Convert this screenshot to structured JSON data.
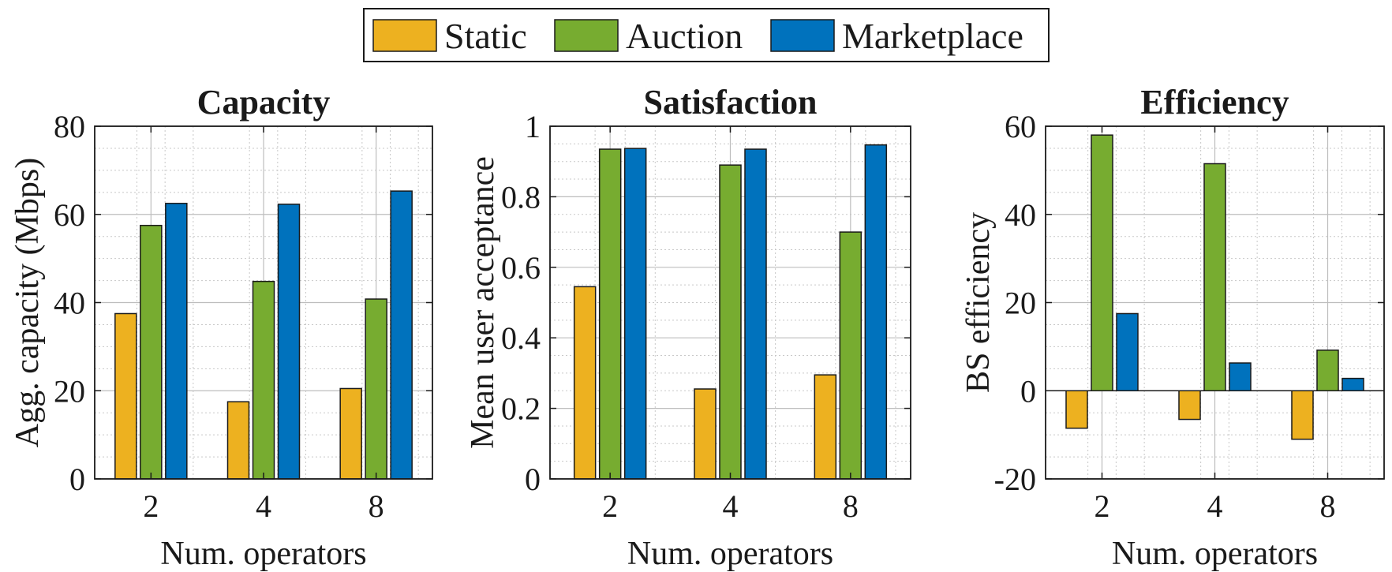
{
  "legend": {
    "entries": [
      {
        "label": "Static",
        "color": "#EDB120"
      },
      {
        "label": "Auction",
        "color": "#77AC30"
      },
      {
        "label": "Marketplace",
        "color": "#0072BD"
      }
    ]
  },
  "chart_data": [
    {
      "type": "bar",
      "title": "Capacity",
      "xlabel": "Num. operators",
      "ylabel": "Agg. capacity (Mbps)",
      "categories": [
        "2",
        "4",
        "8"
      ],
      "ylim": [
        0,
        80
      ],
      "yticks": [
        0,
        20,
        40,
        60,
        80
      ],
      "ytick_labels": [
        "0",
        "20",
        "40",
        "60",
        "80"
      ],
      "grid": true,
      "series": [
        {
          "name": "Static",
          "values": [
            37.5,
            17.5,
            20.5
          ]
        },
        {
          "name": "Auction",
          "values": [
            57.5,
            44.8,
            40.8
          ]
        },
        {
          "name": "Marketplace",
          "values": [
            62.5,
            62.3,
            65.3
          ]
        }
      ]
    },
    {
      "type": "bar",
      "title": "Satisfaction",
      "xlabel": "Num. operators",
      "ylabel": "Mean user acceptance",
      "categories": [
        "2",
        "4",
        "8"
      ],
      "ylim": [
        0,
        1
      ],
      "yticks": [
        0,
        0.2,
        0.4,
        0.6,
        0.8,
        1
      ],
      "ytick_labels": [
        "0",
        "0.2",
        "0.4",
        "0.6",
        "0.8",
        "1"
      ],
      "grid": true,
      "series": [
        {
          "name": "Static",
          "values": [
            0.545,
            0.255,
            0.295
          ]
        },
        {
          "name": "Auction",
          "values": [
            0.935,
            0.89,
            0.7
          ]
        },
        {
          "name": "Marketplace",
          "values": [
            0.937,
            0.935,
            0.947
          ]
        }
      ]
    },
    {
      "type": "bar",
      "title": "Efficiency",
      "xlabel": "Num. operators",
      "ylabel": "BS efficiency",
      "categories": [
        "2",
        "4",
        "8"
      ],
      "ylim": [
        -20,
        60
      ],
      "yticks": [
        -20,
        0,
        20,
        40,
        60
      ],
      "ytick_labels": [
        "-20",
        "0",
        "20",
        "40",
        "60"
      ],
      "grid": true,
      "series": [
        {
          "name": "Static",
          "values": [
            -8.5,
            -6.5,
            -11
          ]
        },
        {
          "name": "Auction",
          "values": [
            58,
            51.5,
            9.2
          ]
        },
        {
          "name": "Marketplace",
          "values": [
            17.5,
            6.3,
            2.8
          ]
        }
      ]
    }
  ]
}
